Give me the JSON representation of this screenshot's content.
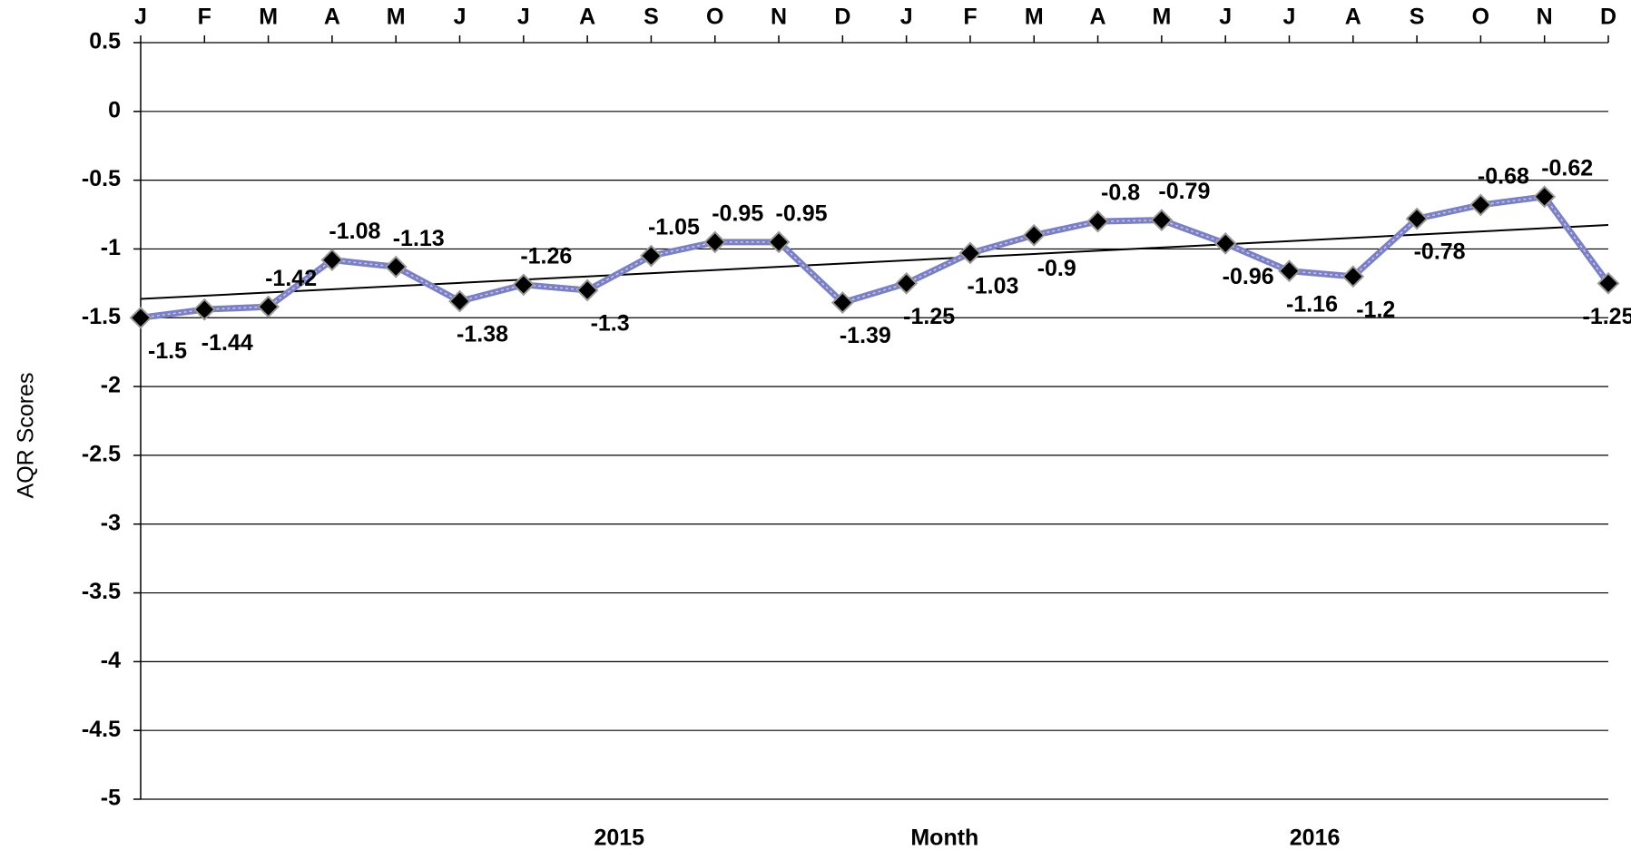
{
  "chart_data": {
    "type": "line",
    "ylabel": "AQR Scores",
    "xlabel": "Month",
    "year_labels": [
      "2015",
      "2016"
    ],
    "categories": [
      "J",
      "F",
      "M",
      "A",
      "M",
      "J",
      "J",
      "A",
      "S",
      "O",
      "N",
      "D",
      "J",
      "F",
      "M",
      "A",
      "M",
      "J",
      "J",
      "A",
      "S",
      "O",
      "N",
      "D"
    ],
    "series": [
      {
        "name": "AQR Scores",
        "color": "#7b80c4",
        "values": [
          -1.5,
          -1.44,
          -1.42,
          -1.08,
          -1.13,
          -1.38,
          -1.26,
          -1.3,
          -1.05,
          -0.95,
          -0.95,
          -1.39,
          -1.25,
          -1.03,
          -0.9,
          -0.8,
          -0.79,
          -0.96,
          -1.16,
          -1.2,
          -0.78,
          -0.68,
          -0.62,
          -1.25
        ]
      }
    ],
    "trendline": true,
    "ylim": [
      -5,
      0.5
    ],
    "yticks": [
      0.5,
      0,
      -0.5,
      -1,
      -1.5,
      -2,
      -2.5,
      -3,
      -3.5,
      -4,
      -4.5,
      -5
    ],
    "grid": true
  }
}
